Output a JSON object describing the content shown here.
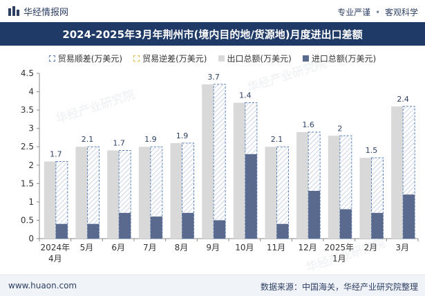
{
  "header": {
    "brand": "华经情报网",
    "tag1": "专业严谨",
    "sep": "•",
    "tag2": "客观科学"
  },
  "legend": {
    "surplus": "贸易顺差(万美元)",
    "deficit": "贸易逆差(万美元)",
    "export": "出口总额(万美元)",
    "import": "进口总额(万美元)"
  },
  "footer": {
    "site": "www.huaon.com",
    "source": "数据来源：中国海关，华经产业研究院整理"
  },
  "watermark": "华经产业研究院",
  "colors": {
    "export": "#d9d9d9",
    "import": "#5a6a8f",
    "surplus_border": "#5b82b8",
    "deficit_border": "#e3c04a",
    "title_bg": "#1f3a66"
  },
  "chart_data": {
    "type": "bar",
    "title": "2024-2025年3月年荆州市(境内目的地/货源地)月度进出口差额",
    "categories": [
      "2024年\n4月",
      "5月",
      "6月",
      "7月",
      "8月",
      "9月",
      "10月",
      "11月",
      "12月",
      "2025年\n1月",
      "2月",
      "3月"
    ],
    "ylim": [
      0,
      4.5
    ],
    "yticks": [
      0,
      0.5,
      1,
      1.5,
      2,
      2.5,
      3,
      3.5,
      4,
      4.5
    ],
    "series": [
      {
        "name": "出口总额(万美元)",
        "values": [
          2.1,
          2.5,
          2.4,
          2.5,
          2.6,
          4.2,
          3.7,
          2.5,
          2.9,
          2.8,
          2.2,
          3.6
        ]
      },
      {
        "name": "进口总额(万美元)",
        "values": [
          0.4,
          0.4,
          0.7,
          0.6,
          0.7,
          0.5,
          2.3,
          0.4,
          1.3,
          0.8,
          0.7,
          1.2
        ]
      },
      {
        "name": "贸易顺差(万美元)",
        "values": [
          1.7,
          2.1,
          1.7,
          1.9,
          1.9,
          3.7,
          1.4,
          2.1,
          1.6,
          2,
          1.5,
          2.4
        ]
      }
    ],
    "data_labels": [
      "1.7",
      "2.1",
      "1.7",
      "1.9",
      "1.9",
      "3.7",
      "1.4",
      "2.1",
      "1.6",
      "2",
      "1.5",
      "2.4"
    ]
  }
}
